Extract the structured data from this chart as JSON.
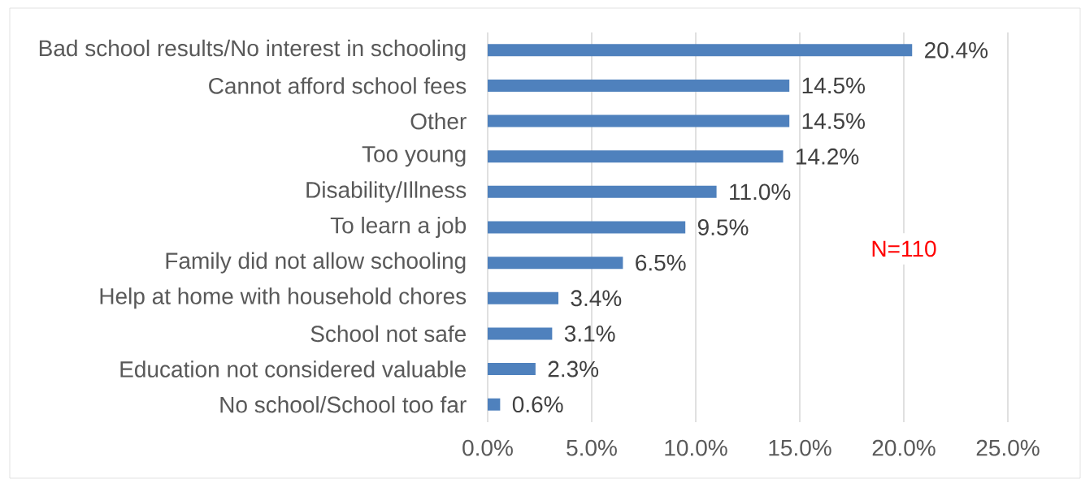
{
  "chart_data": {
    "type": "bar",
    "orientation": "horizontal",
    "categories": [
      "Bad school results/No interest in schooling",
      "Cannot afford school fees",
      "Other",
      "Too young",
      "Disability/Illness",
      "To learn a job",
      "Family did not allow schooling",
      "Help at home with household chores",
      "School not safe",
      "Education not considered valuable",
      "No school/School too far"
    ],
    "values": [
      20.4,
      14.5,
      14.5,
      14.2,
      11.0,
      9.5,
      6.5,
      3.4,
      3.1,
      2.3,
      0.6
    ],
    "value_labels": [
      "20.4%",
      "14.5%",
      "14.5%",
      "14.2%",
      "11.0%",
      "9.5%",
      "6.5%",
      "3.4%",
      "3.1%",
      "2.3%",
      "0.6%"
    ],
    "color": "#4f81bd",
    "xlim": [
      0,
      25
    ],
    "xticks": [
      {
        "value": 0,
        "label": "0.0%"
      },
      {
        "value": 5,
        "label": "5.0%"
      },
      {
        "value": 10,
        "label": "10.0%"
      },
      {
        "value": 15,
        "label": "15.0%"
      },
      {
        "value": 20,
        "label": "20.0%"
      },
      {
        "value": 25,
        "label": "25.0%"
      }
    ],
    "grid": "x",
    "annotations": [
      "N=110"
    ]
  }
}
